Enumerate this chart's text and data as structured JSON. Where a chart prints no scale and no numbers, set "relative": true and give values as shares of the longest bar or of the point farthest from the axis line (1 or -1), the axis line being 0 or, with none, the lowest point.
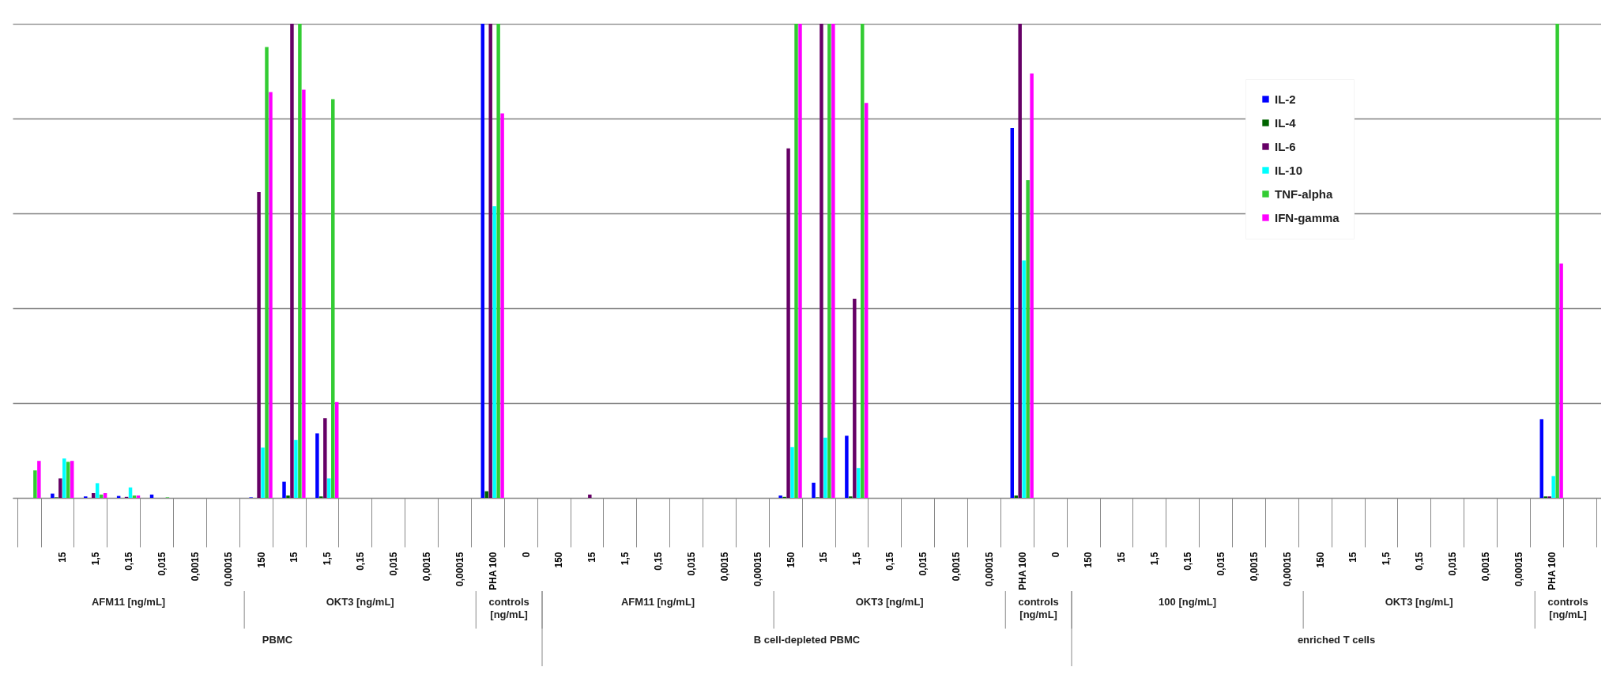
{
  "chart_data": {
    "type": "bar",
    "relative": true,
    "grid": "y",
    "legend": "top right",
    "categories": [
      null,
      "15",
      "1,5",
      "0,15",
      "0,015",
      "0,0015",
      "0,00015",
      "150",
      "15",
      "1,5",
      "0,15",
      "0,015",
      "0,0015",
      "0,00015",
      "PHA 100",
      "0",
      "150",
      "15",
      "1,5",
      "0,15",
      "0,015",
      "0,0015",
      "0,00015",
      "150",
      "15",
      "1,5",
      "0,15",
      "0,015",
      "0,0015",
      "0,00015",
      "PHA 100",
      "0",
      "150",
      "15",
      "1,5",
      "0,15",
      "0,015",
      "0,0015",
      "0,00015",
      "150",
      "15",
      "1,5",
      "0,15",
      "0,015",
      "0,0015",
      "0,00015",
      "PHA 100",
      null
    ],
    "series": [
      {
        "name": "IL-2",
        "color": "#0000ff",
        "values": [
          null,
          0.009,
          0.003,
          0.004,
          0.007,
          0,
          0,
          0.001,
          0.034,
          0.136,
          0,
          0,
          0,
          0,
          1,
          0,
          0,
          0,
          0,
          0,
          0,
          0,
          0,
          0.005,
          0.032,
          0.131,
          0,
          0,
          0,
          0,
          0.78,
          0,
          0,
          0,
          0,
          0,
          0,
          0,
          0,
          0,
          0,
          0,
          0,
          0,
          0,
          0,
          0.166,
          0
        ]
      },
      {
        "name": "IL-4",
        "color": "#006400",
        "values": [
          null,
          0.001,
          0,
          0,
          0,
          0,
          0,
          0,
          0.005,
          0.003,
          0,
          0,
          0,
          0,
          0.014,
          0,
          0,
          0,
          0,
          0,
          0,
          0,
          0,
          0.002,
          0.001,
          0.003,
          0,
          0,
          0,
          0,
          0.005,
          0,
          0,
          0,
          0,
          0,
          0,
          0,
          0,
          0,
          0,
          0,
          0,
          0,
          0,
          0,
          0.003,
          0
        ]
      },
      {
        "name": "IL-6",
        "color": "#660066",
        "values": [
          null,
          0.041,
          0.01,
          0.002,
          0,
          0,
          0,
          0.645,
          1,
          0.168,
          0,
          0,
          0,
          0,
          1,
          0,
          0,
          0.007,
          0,
          0,
          0,
          0,
          0,
          0.737,
          1,
          0.42,
          0,
          0,
          0,
          0,
          1,
          0,
          0,
          0,
          0,
          0,
          0,
          0,
          0,
          0,
          0,
          0,
          0,
          0,
          0,
          0,
          0.003,
          0
        ]
      },
      {
        "name": "IL-10",
        "color": "#00ffff",
        "values": [
          null,
          0.083,
          0.031,
          0.022,
          0,
          0,
          0,
          0.106,
          0.122,
          0.041,
          0,
          0,
          0,
          0,
          0.615,
          0,
          0,
          0,
          0,
          0,
          0,
          0,
          0,
          0.107,
          0.127,
          0.063,
          0,
          0,
          0,
          0,
          0.501,
          0,
          0,
          0,
          0,
          0,
          0,
          0,
          0,
          0,
          0,
          0,
          0,
          0,
          0,
          0,
          0.046,
          0
        ]
      },
      {
        "name": "TNF-alpha",
        "color": "#33cc33",
        "values": [
          0.058,
          0.076,
          0.007,
          0.005,
          0.001,
          0,
          0,
          0.951,
          1,
          0.841,
          0,
          0,
          0,
          0,
          1,
          0,
          0,
          0,
          0,
          0,
          0,
          0,
          0,
          1,
          1,
          1,
          0,
          0,
          0,
          0,
          0.67,
          0,
          0,
          0,
          0,
          0,
          0,
          0,
          0,
          0,
          0,
          0,
          0,
          0,
          0,
          0,
          1,
          0
        ]
      },
      {
        "name": "IFN-gamma",
        "color": "#ff00ff",
        "values": [
          0.078,
          0.078,
          0.01,
          0.005,
          0,
          0,
          0,
          0.856,
          0.861,
          0.202,
          0,
          0,
          0,
          0,
          0.811,
          0,
          0,
          0,
          0,
          0,
          0,
          0,
          0,
          1,
          1,
          0.833,
          0,
          0,
          0,
          0,
          0.895,
          0,
          0,
          0,
          0,
          0,
          0,
          0,
          0,
          0,
          0,
          0,
          0,
          0,
          0,
          0,
          0.494,
          0
        ]
      }
    ],
    "annotations": [
      "AFM11 [ng/mL]",
      "OKT3 [ng/mL]",
      "controls [ng/mL]",
      "AFM11 [ng/mL]",
      "OKT3 [ng/mL]",
      "controls [ng/mL]",
      "100 [ng/mL]",
      "OKT3 [ng/mL]",
      "controls [ng/mL]",
      "PBMC",
      "B cell-depleted PBMC",
      "enriched T cells"
    ]
  }
}
